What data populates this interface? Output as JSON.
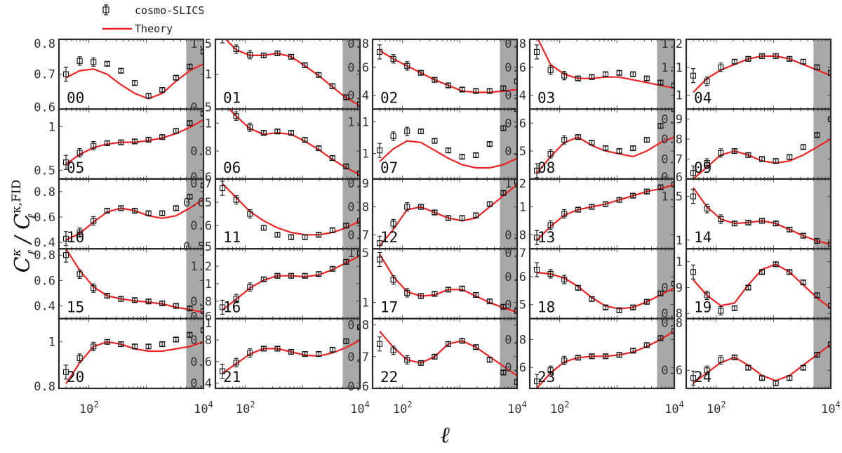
{
  "chart_data": {
    "type": "line",
    "xlabel": "ℓ",
    "ylabel_main": "C",
    "ylabel_sup_num": "κ",
    "ylabel_sub": "ℓ",
    "ylabel_sup_den": "κ,FID",
    "x_scale": "log",
    "xlim": [
      30,
      10000
    ],
    "x_ticks": [
      {
        "value": 100,
        "base": "10",
        "exp": "2"
      },
      {
        "value": 10000,
        "base": "10",
        "exp": "4"
      }
    ],
    "shaded_from": 5000,
    "colors": {
      "theory": "#ee2222",
      "sims": "#111111",
      "shade": "#a8a8a8"
    },
    "legend": {
      "placement": "top-left",
      "entries": [
        "cosmo-SLICS",
        "Theory"
      ]
    },
    "panels": [
      {
        "id": "00",
        "ylim": [
          0.6,
          0.8
        ],
        "yticks": [
          0.6,
          0.7,
          0.8
        ],
        "ytick_labels": [
          "0.6",
          "0.7",
          "0.8"
        ],
        "theory": [
          0.69,
          0.71,
          0.715,
          0.7,
          0.67,
          0.645,
          0.63,
          0.645,
          0.68,
          0.71,
          0.73
        ],
        "sims": [
          0.7,
          0.738,
          0.735,
          0.73,
          0.71,
          0.675,
          0.638,
          0.655,
          0.69,
          0.722,
          0.765
        ]
      },
      {
        "id": "01",
        "ylim": [
          0.5,
          1.5
        ],
        "yticks": [
          0.5,
          1,
          1.5
        ],
        "ytick_labels": [
          "0.5",
          "1",
          "1.5"
        ],
        "theory": [
          1.55,
          1.35,
          1.27,
          1.27,
          1.3,
          1.25,
          1.12,
          0.98,
          0.82,
          0.66,
          0.55
        ],
        "sims": [
          1.55,
          1.36,
          1.28,
          1.27,
          1.3,
          1.25,
          1.13,
          0.99,
          0.83,
          0.67,
          0.57
        ]
      },
      {
        "id": "02",
        "ylim": [
          0.3,
          0.8
        ],
        "yticks": [
          0.4,
          0.6,
          0.8
        ],
        "ytick_labels": [
          "0.4",
          "0.6",
          "0.8"
        ],
        "theory": [
          0.72,
          0.66,
          0.61,
          0.56,
          0.51,
          0.47,
          0.43,
          0.42,
          0.42,
          0.43,
          0.44
        ],
        "sims": [
          0.71,
          0.66,
          0.61,
          0.56,
          0.51,
          0.47,
          0.44,
          0.43,
          0.43,
          0.45,
          0.5
        ]
      },
      {
        "id": "03",
        "ylim": [
          0.3,
          0.8
        ],
        "yticks": [
          0.4,
          0.6,
          0.8
        ],
        "ytick_labels": [
          "0.4",
          "0.6",
          "0.8"
        ],
        "theory": [
          0.82,
          0.62,
          0.55,
          0.52,
          0.52,
          0.53,
          0.53,
          0.51,
          0.49,
          0.47,
          0.45
        ],
        "sims": [
          0.71,
          0.58,
          0.54,
          0.52,
          0.53,
          0.55,
          0.56,
          0.55,
          0.52,
          0.49,
          0.47
        ]
      },
      {
        "id": "04",
        "ylim": [
          0.95,
          1.2
        ],
        "yticks": [
          1,
          1.1,
          1.2
        ],
        "ytick_labels": [
          "1",
          "1.1",
          "1.2"
        ],
        "theory": [
          1.01,
          1.06,
          1.09,
          1.11,
          1.13,
          1.14,
          1.14,
          1.13,
          1.11,
          1.09,
          1.07
        ],
        "sims": [
          1.07,
          1.05,
          1.1,
          1.12,
          1.13,
          1.14,
          1.14,
          1.13,
          1.12,
          1.1,
          1.08
        ]
      },
      {
        "id": "05",
        "ylim": [
          0.4,
          1.2
        ],
        "yticks": [
          0.5,
          1
        ],
        "ytick_labels": [
          "0.5",
          "1"
        ],
        "theory": [
          0.57,
          0.68,
          0.76,
          0.8,
          0.82,
          0.82,
          0.84,
          0.87,
          0.92,
          0.99,
          1.08
        ],
        "sims": [
          0.59,
          0.7,
          0.78,
          0.81,
          0.82,
          0.83,
          0.85,
          0.88,
          0.95,
          1.04,
          1.15
        ]
      },
      {
        "id": "06",
        "ylim": [
          0.6,
          1.1
        ],
        "yticks": [
          0.6,
          0.8,
          1
        ],
        "ytick_labels": [
          "0.6",
          "0.8",
          "1"
        ],
        "theory": [
          1.15,
          1.05,
          0.96,
          0.92,
          0.93,
          0.92,
          0.87,
          0.81,
          0.74,
          0.68,
          0.63
        ],
        "sims": [
          1.15,
          1.05,
          0.97,
          0.93,
          0.94,
          0.93,
          0.88,
          0.82,
          0.75,
          0.69,
          0.64
        ]
      },
      {
        "id": "07",
        "ylim": [
          0.92,
          1.14
        ],
        "yticks": [
          1,
          1.1
        ],
        "ytick_labels": [
          "1",
          "1.1"
        ],
        "theory": [
          0.975,
          1.015,
          1.04,
          1.035,
          1.01,
          0.985,
          0.965,
          0.955,
          0.955,
          0.965,
          0.985
        ],
        "sims": [
          1.01,
          1.055,
          1.07,
          1.07,
          1.04,
          1.01,
          0.99,
          0.995,
          1.03,
          1.08,
          1.14
        ]
      },
      {
        "id": "08",
        "ylim": [
          0.4,
          0.65
        ],
        "yticks": [
          0.5,
          0.6
        ],
        "ytick_labels": [
          "0.5",
          "0.6"
        ],
        "theory": [
          0.42,
          0.48,
          0.53,
          0.55,
          0.52,
          0.5,
          0.49,
          0.48,
          0.5,
          0.53,
          0.55
        ],
        "sims": [
          0.43,
          0.49,
          0.54,
          0.55,
          0.53,
          0.51,
          0.5,
          0.51,
          0.54,
          0.59,
          0.65
        ]
      },
      {
        "id": "09",
        "ylim": [
          0.6,
          0.95
        ],
        "yticks": [
          0.6,
          0.7,
          0.8,
          0.9
        ],
        "ytick_labels": [
          "0.6",
          "0.7",
          "0.8",
          "0.9"
        ],
        "theory": [
          0.6,
          0.66,
          0.72,
          0.74,
          0.72,
          0.69,
          0.68,
          0.69,
          0.72,
          0.76,
          0.8
        ],
        "sims": [
          0.63,
          0.68,
          0.73,
          0.74,
          0.72,
          0.7,
          0.69,
          0.71,
          0.76,
          0.82,
          0.9
        ]
      },
      {
        "id": "10",
        "ylim": [
          0.35,
          0.9
        ],
        "yticks": [
          0.4,
          0.6,
          0.8
        ],
        "ytick_labels": [
          "0.4",
          "0.6",
          "0.8"
        ],
        "theory": [
          0.42,
          0.47,
          0.56,
          0.64,
          0.67,
          0.65,
          0.61,
          0.59,
          0.61,
          0.67,
          0.74
        ],
        "sims": [
          0.43,
          0.48,
          0.57,
          0.65,
          0.67,
          0.65,
          0.63,
          0.63,
          0.67,
          0.76,
          0.85
        ]
      },
      {
        "id": "11",
        "ylim": [
          0.55,
          0.7
        ],
        "yticks": [
          0.55,
          0.6,
          0.65,
          0.7
        ],
        "ytick_labels": [
          "0.55",
          "0.6",
          "0.65",
          "0.7"
        ],
        "theory": [
          0.69,
          0.66,
          0.63,
          0.61,
          0.595,
          0.585,
          0.58,
          0.58,
          0.585,
          0.595,
          0.61
        ],
        "sims": [
          0.68,
          0.655,
          0.625,
          0.595,
          0.58,
          0.575,
          0.575,
          0.58,
          0.59,
          0.6,
          0.61
        ]
      },
      {
        "id": "12",
        "ylim": [
          0.65,
          0.9
        ],
        "yticks": [
          0.7,
          0.8,
          0.9
        ],
        "ytick_labels": [
          "0.7",
          "0.8",
          "0.9"
        ],
        "theory": [
          0.66,
          0.72,
          0.79,
          0.8,
          0.78,
          0.76,
          0.75,
          0.76,
          0.8,
          0.84,
          0.88
        ],
        "sims": [
          0.67,
          0.74,
          0.8,
          0.8,
          0.78,
          0.76,
          0.76,
          0.77,
          0.81,
          0.85,
          0.89
        ]
      },
      {
        "id": "13",
        "ylim": [
          0.7,
          1.2
        ],
        "yticks": [
          0.8,
          1,
          1.2
        ],
        "ytick_labels": [
          "0.8",
          "1",
          "1.2"
        ],
        "theory": [
          0.76,
          0.86,
          0.94,
          0.98,
          1.0,
          1.02,
          1.05,
          1.08,
          1.11,
          1.13,
          1.16
        ],
        "sims": [
          0.78,
          0.87,
          0.95,
          0.98,
          1.0,
          1.02,
          1.05,
          1.08,
          1.11,
          1.14,
          1.16
        ]
      },
      {
        "id": "14",
        "ylim": [
          0.9,
          1.7
        ],
        "yticks": [
          1,
          1.5
        ],
        "ytick_labels": [
          "1",
          "1.5"
        ],
        "theory": [
          1.6,
          1.38,
          1.24,
          1.19,
          1.2,
          1.22,
          1.19,
          1.12,
          1.05,
          0.99,
          0.95
        ],
        "sims": [
          1.5,
          1.36,
          1.24,
          1.19,
          1.2,
          1.22,
          1.19,
          1.12,
          1.05,
          0.99,
          0.95
        ]
      },
      {
        "id": "15",
        "ylim": [
          0.3,
          0.85
        ],
        "yticks": [
          0.4,
          0.6,
          0.8
        ],
        "ytick_labels": [
          "0.4",
          "0.6",
          "0.8"
        ],
        "theory": [
          0.85,
          0.68,
          0.55,
          0.48,
          0.455,
          0.44,
          0.43,
          0.415,
          0.39,
          0.37,
          0.35
        ],
        "sims": [
          0.8,
          0.65,
          0.54,
          0.48,
          0.455,
          0.445,
          0.435,
          0.42,
          0.4,
          0.38,
          0.36
        ]
      },
      {
        "id": "16",
        "ylim": [
          0.6,
          1.4
        ],
        "yticks": [
          0.6,
          0.8,
          1,
          1.2
        ],
        "ytick_labels": [
          "0.6",
          "0.8",
          "1",
          "1.2"
        ],
        "theory": [
          0.7,
          0.82,
          0.95,
          1.04,
          1.09,
          1.09,
          1.08,
          1.1,
          1.16,
          1.24,
          1.32
        ],
        "sims": [
          0.73,
          0.83,
          0.96,
          1.05,
          1.09,
          1.09,
          1.09,
          1.11,
          1.17,
          1.25,
          1.35
        ]
      },
      {
        "id": "17",
        "ylim": [
          0.85,
          1.5
        ],
        "yticks": [
          1,
          1.5
        ],
        "ytick_labels": [
          "1",
          "1.5"
        ],
        "theory": [
          1.45,
          1.24,
          1.1,
          1.06,
          1.07,
          1.12,
          1.12,
          1.06,
          1.0,
          0.95,
          0.91
        ],
        "sims": [
          1.4,
          1.21,
          1.09,
          1.06,
          1.08,
          1.12,
          1.13,
          1.07,
          1.01,
          0.96,
          0.92
        ]
      },
      {
        "id": "18",
        "ylim": [
          0.45,
          0.7
        ],
        "yticks": [
          0.5,
          0.6,
          0.7
        ],
        "ytick_labels": [
          "0.5",
          "0.6",
          "0.7"
        ],
        "theory": [
          0.615,
          0.61,
          0.595,
          0.565,
          0.525,
          0.495,
          0.485,
          0.49,
          0.51,
          0.535,
          0.56
        ],
        "sims": [
          0.625,
          0.61,
          0.59,
          0.56,
          0.52,
          0.49,
          0.48,
          0.49,
          0.51,
          0.54,
          0.575
        ]
      },
      {
        "id": "19",
        "ylim": [
          0.78,
          1.05
        ],
        "yticks": [
          0.8,
          0.9,
          1
        ],
        "ytick_labels": [
          "0.8",
          "0.9",
          "1"
        ],
        "theory": [
          0.93,
          0.87,
          0.83,
          0.84,
          0.91,
          0.97,
          0.99,
          0.96,
          0.91,
          0.86,
          0.82
        ],
        "sims": [
          0.96,
          0.87,
          0.81,
          0.82,
          0.9,
          0.96,
          0.99,
          0.96,
          0.92,
          0.87,
          0.83
        ]
      },
      {
        "id": "20",
        "ylim": [
          0.8,
          1.1
        ],
        "yticks": [
          0.8,
          1
        ],
        "ytick_labels": [
          "0.8",
          "1"
        ],
        "theory": [
          0.82,
          0.91,
          0.98,
          1.0,
          0.99,
          0.97,
          0.96,
          0.96,
          0.97,
          0.98,
          1.0
        ],
        "sims": [
          0.87,
          0.93,
          0.98,
          1.0,
          0.99,
          0.98,
          0.98,
          0.99,
          1.01,
          1.03,
          1.05
        ]
      },
      {
        "id": "21",
        "ylim": [
          0.35,
          1.0
        ],
        "yticks": [
          0.4,
          0.6,
          0.8,
          1
        ],
        "ytick_labels": [
          "0.4",
          "0.6",
          "0.8",
          "1"
        ],
        "theory": [
          0.49,
          0.58,
          0.67,
          0.72,
          0.72,
          0.69,
          0.66,
          0.65,
          0.68,
          0.73,
          0.8
        ],
        "sims": [
          0.51,
          0.59,
          0.68,
          0.72,
          0.72,
          0.69,
          0.67,
          0.67,
          0.71,
          0.79,
          0.92
        ]
      },
      {
        "id": "22",
        "ylim": [
          0.6,
          0.82
        ],
        "yticks": [
          0.6,
          0.7,
          0.8
        ],
        "ytick_labels": [
          "0.6",
          "0.7",
          "0.8"
        ],
        "theory": [
          0.78,
          0.73,
          0.69,
          0.68,
          0.7,
          0.74,
          0.75,
          0.73,
          0.7,
          0.67,
          0.64
        ],
        "sims": [
          0.74,
          0.72,
          0.69,
          0.68,
          0.7,
          0.74,
          0.75,
          0.73,
          0.69,
          0.65,
          0.62
        ]
      },
      {
        "id": "23",
        "ylim": [
          0.45,
          0.95
        ],
        "yticks": [
          0.6,
          0.8
        ],
        "ytick_labels": [
          "0.6",
          "0.8"
        ],
        "theory": [
          0.45,
          0.56,
          0.64,
          0.67,
          0.68,
          0.68,
          0.69,
          0.71,
          0.75,
          0.8,
          0.86
        ],
        "sims": [
          0.5,
          0.58,
          0.65,
          0.67,
          0.68,
          0.68,
          0.69,
          0.72,
          0.76,
          0.81,
          0.86
        ]
      },
      {
        "id": "24",
        "ylim": [
          0.53,
          0.8
        ],
        "yticks": [
          0.6,
          0.8
        ],
        "ytick_labels": [
          "0.6",
          "0.8"
        ],
        "theory": [
          0.55,
          0.59,
          0.63,
          0.65,
          0.62,
          0.58,
          0.56,
          0.58,
          0.62,
          0.66,
          0.7
        ],
        "sims": [
          0.57,
          0.6,
          0.64,
          0.65,
          0.61,
          0.57,
          0.55,
          0.57,
          0.61,
          0.66,
          0.7
        ]
      }
    ]
  }
}
